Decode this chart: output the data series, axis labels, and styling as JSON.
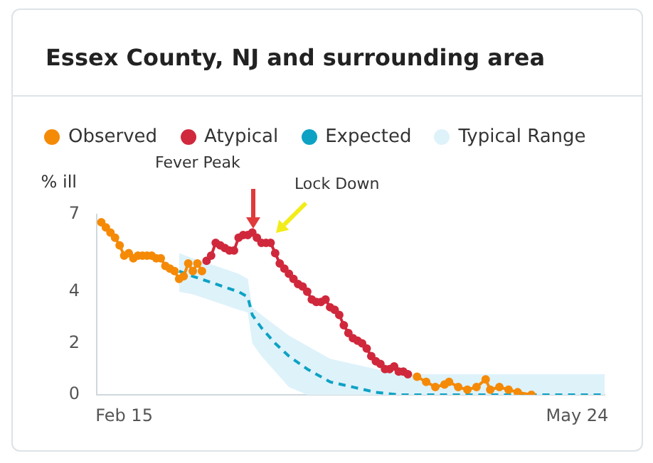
{
  "chart_data": {
    "type": "line",
    "title": "Essex County, NJ and surrounding area",
    "ylabel": "% ill",
    "legend": "top left",
    "grid": false,
    "xlim": [
      "--02-09",
      "--05-30"
    ],
    "xticks": [
      {
        "value": "--02-15",
        "label": "Feb 15"
      },
      {
        "value": "--05-24",
        "label": "May 24"
      }
    ],
    "ylim": [
      0,
      7
    ],
    "yticks": [
      0,
      2,
      4,
      7
    ],
    "annotations": [
      "Fever Peak",
      "Lock Down"
    ],
    "series": [
      {
        "name": "Observed",
        "color": "#f58a07",
        "marker": "circle",
        "line_style": "solid",
        "x": [
          "--02-10",
          "--02-11",
          "--02-12",
          "--02-13",
          "--02-14",
          "--02-15",
          "--02-16",
          "--02-17",
          "--02-18",
          "--02-19",
          "--02-20",
          "--02-21",
          "--02-22",
          "--02-23",
          "--02-24",
          "--02-25",
          "--02-26",
          "--02-27",
          "--02-28",
          "--02-29",
          "--03-01",
          "--03-02",
          "--03-03",
          "--03-05",
          "--04-19",
          "--04-21",
          "--04-23",
          "--04-25",
          "--04-26",
          "--04-28",
          "--04-30",
          "--05-02",
          "--05-04",
          "--05-05",
          "--05-07",
          "--05-09",
          "--05-11",
          "--05-14"
        ],
        "values": [
          6.7,
          6.5,
          6.3,
          6.1,
          5.8,
          5.4,
          5.5,
          5.3,
          5.4,
          5.4,
          5.4,
          5.4,
          5.3,
          5.3,
          5.0,
          4.9,
          4.8,
          4.5,
          4.6,
          5.1,
          4.8,
          5.1,
          4.8,
          null,
          0.7,
          0.5,
          0.3,
          0.4,
          0.5,
          0.3,
          0.2,
          0.3,
          0.6,
          0.2,
          0.3,
          0.2,
          0.1,
          0.0
        ]
      },
      {
        "name": "Atypical",
        "color": "#d0283c",
        "marker": "circle",
        "line_style": "solid",
        "x": [
          "--03-04",
          "--03-05",
          "--03-06",
          "--03-07",
          "--03-08",
          "--03-09",
          "--03-10",
          "--03-11",
          "--03-12",
          "--03-13",
          "--03-14",
          "--03-15",
          "--03-16",
          "--03-17",
          "--03-18",
          "--03-19",
          "--03-20",
          "--03-21",
          "--03-22",
          "--03-23",
          "--03-24",
          "--03-25",
          "--03-26",
          "--03-27",
          "--03-28",
          "--03-29",
          "--03-30",
          "--03-31",
          "--04-01",
          "--04-02",
          "--04-03",
          "--04-04",
          "--04-05",
          "--04-06",
          "--04-07",
          "--04-08",
          "--04-09",
          "--04-10",
          "--04-11",
          "--04-12",
          "--04-13",
          "--04-14",
          "--04-15",
          "--04-16",
          "--04-17"
        ],
        "values": [
          5.2,
          5.4,
          5.9,
          5.8,
          5.7,
          5.6,
          5.6,
          6.1,
          6.2,
          6.2,
          6.3,
          6.1,
          5.9,
          5.9,
          5.9,
          5.5,
          5.1,
          4.9,
          4.7,
          4.5,
          4.3,
          4.2,
          4.0,
          3.7,
          3.6,
          3.6,
          3.7,
          3.4,
          3.3,
          3.1,
          2.7,
          2.4,
          2.2,
          2.1,
          2.0,
          1.8,
          1.5,
          1.3,
          1.2,
          1.0,
          1.0,
          1.1,
          0.9,
          0.9,
          0.8
        ]
      },
      {
        "name": "Expected",
        "color": "#0da2c4",
        "marker": "none",
        "line_style": "dashed",
        "x": [
          "--02-27",
          "--03-01",
          "--03-06",
          "--03-11",
          "--03-13",
          "--03-14",
          "--03-16",
          "--03-19",
          "--03-22",
          "--03-26",
          "--03-31",
          "--04-05",
          "--04-10",
          "--04-15",
          "--04-25",
          "--05-30"
        ],
        "values": [
          4.8,
          4.6,
          4.3,
          4.0,
          3.8,
          3.1,
          2.6,
          2.0,
          1.5,
          1.0,
          0.5,
          0.3,
          0.1,
          0.0,
          0.0,
          0.0
        ],
        "lower": [
          4.0,
          3.9,
          3.6,
          3.3,
          3.2,
          2.0,
          1.5,
          0.9,
          0.3,
          0.0,
          0.0,
          0.0,
          0.0,
          0.0,
          0.0,
          0.0
        ],
        "upper": [
          5.5,
          5.3,
          5.0,
          4.7,
          4.5,
          3.4,
          3.1,
          2.7,
          2.3,
          1.9,
          1.4,
          1.2,
          1.0,
          0.8,
          0.8,
          0.8
        ]
      },
      {
        "name": "Typical Range",
        "type": "area",
        "color": "#def2fa"
      }
    ]
  }
}
